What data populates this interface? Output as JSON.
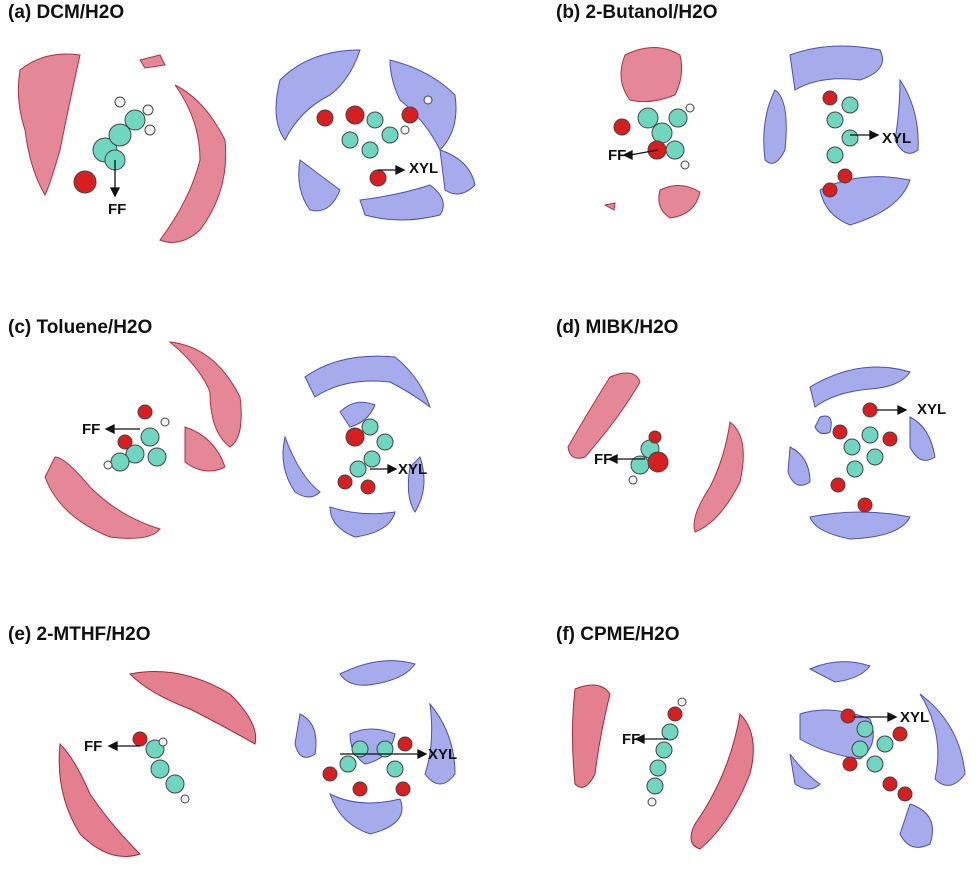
{
  "panels": [
    {
      "title": "(a) DCM/H2O",
      "ff_label": "FF",
      "xyl_label": "XYL"
    },
    {
      "title": "(b) 2-Butanol/H2O",
      "ff_label": "FF",
      "xyl_label": "XYL"
    },
    {
      "title": "(c) Toluene/H2O",
      "ff_label": "FF",
      "xyl_label": "XYL"
    },
    {
      "title": "(d) MIBK/H2O",
      "ff_label": "FF",
      "xyl_label": "XYL"
    },
    {
      "title": "(e) 2-MTHF/H2O",
      "ff_label": "FF",
      "xyl_label": "XYL"
    },
    {
      "title": "(f) CPME/H2O",
      "ff_label": "FF",
      "xyl_label": "XYL"
    }
  ],
  "colors": {
    "ff_isosurface": "#d9546a",
    "xyl_isosurface": "#6a73e0",
    "carbon": "#6fd6c0",
    "oxygen": "#d81e1e",
    "hydrogen": "#f2f2f2"
  }
}
